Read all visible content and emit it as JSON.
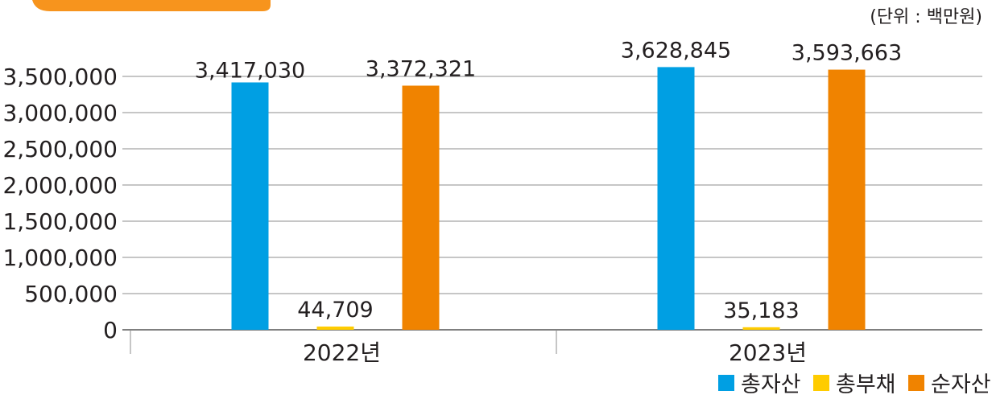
{
  "chart_data": {
    "type": "bar",
    "unit_label": "(단위 : 백만원)",
    "categories": [
      "2022년",
      "2023년"
    ],
    "series": [
      {
        "name": "총자산",
        "color": "#009fe3",
        "values": [
          3417030,
          3628845
        ],
        "labels": [
          "3,417,030",
          "3,628,845"
        ]
      },
      {
        "name": "총부채",
        "color": "#ffcc00",
        "values": [
          44709,
          35183
        ],
        "labels": [
          "44,709",
          "35,183"
        ]
      },
      {
        "name": "순자산",
        "color": "#f08300",
        "values": [
          3372321,
          3593663
        ],
        "labels": [
          "3,372,321",
          "3,593,663"
        ]
      }
    ],
    "ylim": [
      0,
      3500000
    ],
    "yticks": [
      0,
      500000,
      1000000,
      1500000,
      2000000,
      2500000,
      3000000,
      3500000
    ],
    "ytick_labels": [
      "0",
      "500,000",
      "1,000,000",
      "1,500,000",
      "2,000,000",
      "2,500,000",
      "3,000,000",
      "3,500,000"
    ],
    "grid": true,
    "legend_position": "bottom-right",
    "accent_color": "#f7941d"
  }
}
